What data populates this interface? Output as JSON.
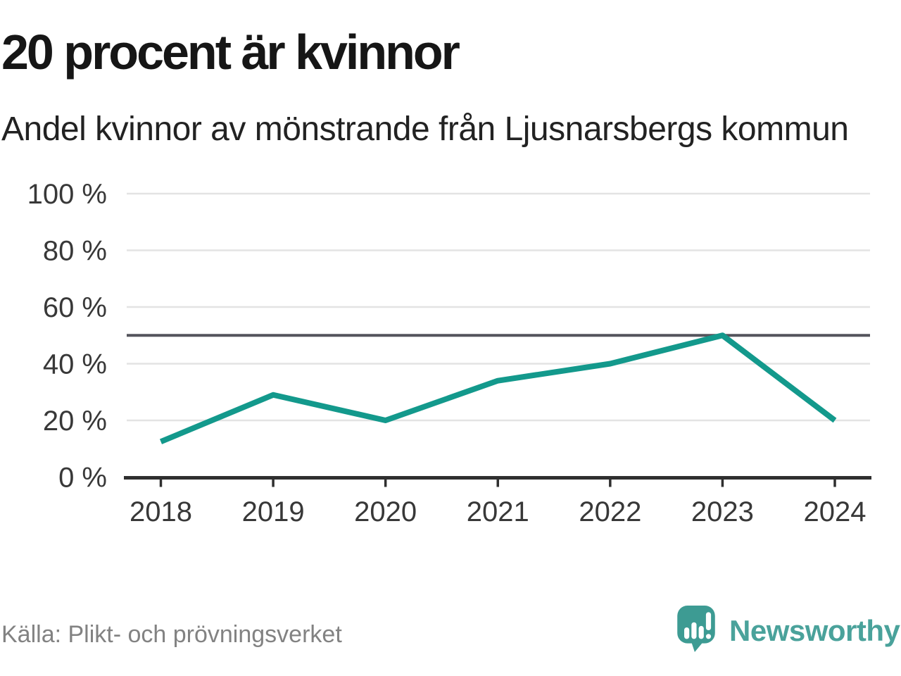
{
  "header": {
    "title": "20 procent är kvinnor",
    "subtitle": "Andel kvinnor av mönstrande från Ljusnarsbergs kommun"
  },
  "chart_data": {
    "type": "line",
    "categories": [
      "2018",
      "2019",
      "2020",
      "2021",
      "2022",
      "2023",
      "2024"
    ],
    "series": [
      {
        "name": "Andel kvinnor av mönstrande",
        "values": [
          12.5,
          29,
          20,
          34,
          40,
          50,
          20
        ]
      }
    ],
    "unit": "%",
    "ylim": [
      0,
      100
    ],
    "yticks": [
      0,
      20,
      40,
      60,
      80,
      100
    ],
    "y_tick_labels": [
      "0 %",
      "20 %",
      "40 %",
      "60 %",
      "80 %",
      "100 %"
    ],
    "reference_line": 50,
    "grid": true,
    "legend": "none",
    "title": "20 procent är kvinnor",
    "xlabel": "",
    "ylabel": ""
  },
  "colors": {
    "line": "#13998c",
    "grid": "#e3e3e3",
    "reference": "#54545c",
    "axis": "#2f2f2f",
    "tick_label": "#383838",
    "logo_teal": "#3d9b93",
    "brand_text": "#4aa29b"
  },
  "footer": {
    "source": "Källa: Plikt- och prövningsverket",
    "brand": "Newsworthy"
  }
}
